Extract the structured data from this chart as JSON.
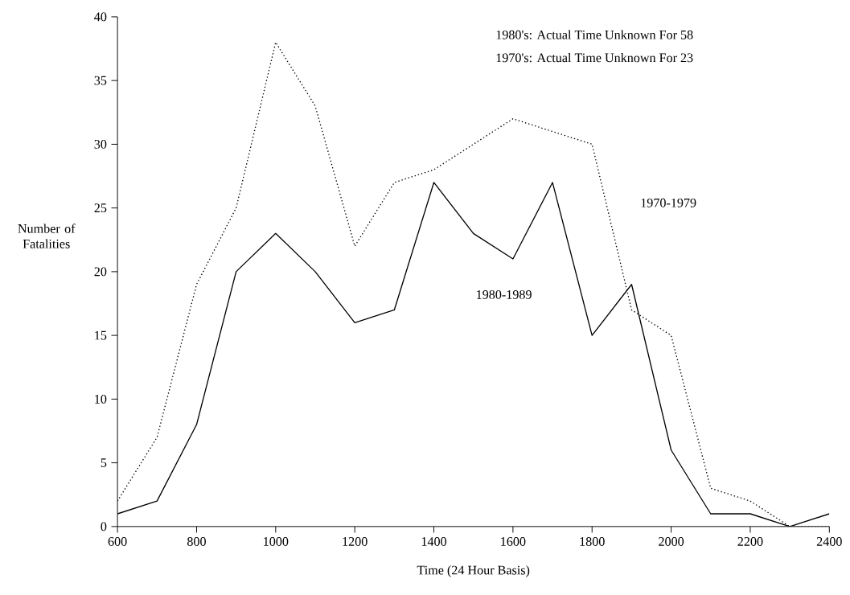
{
  "chart_data": {
    "type": "line",
    "xlabel": "Time (24 Hour Basis)",
    "ylabel": "Number of Fatalities",
    "annotations": [
      "1980's:  Actual Time Unknown For 58",
      "1970's:  Actual Time Unknown For 23"
    ],
    "x": [
      600,
      700,
      800,
      900,
      1000,
      1100,
      1200,
      1300,
      1400,
      1500,
      1600,
      1700,
      1800,
      1900,
      2000,
      2100,
      2200,
      2300,
      2400
    ],
    "series": [
      {
        "name": "1980-1989",
        "color": "#000000",
        "line_style": "solid",
        "values": [
          1,
          2,
          8,
          20,
          23,
          20,
          16,
          17,
          27,
          23,
          21,
          27,
          15,
          19,
          6,
          1,
          1,
          0,
          1
        ]
      },
      {
        "name": "1970-1979",
        "color": "#000000",
        "line_style": "dotted",
        "values": [
          2,
          7,
          19,
          25,
          38,
          33,
          22,
          27,
          28,
          30,
          32,
          31,
          30,
          17,
          15,
          3,
          2,
          0,
          0
        ]
      }
    ],
    "xlim": [
      600,
      2400
    ],
    "ylim": [
      0,
      40
    ],
    "xticks": [
      600,
      800,
      1000,
      1200,
      1400,
      1600,
      1800,
      2000,
      2200,
      2400
    ],
    "yticks": [
      0,
      5,
      10,
      15,
      20,
      25,
      30,
      35,
      40
    ],
    "grid": false,
    "legend": false,
    "marker": "none"
  }
}
